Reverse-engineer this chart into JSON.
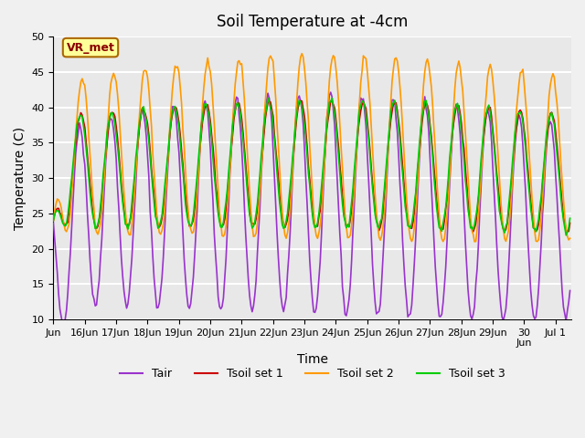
{
  "title": "Soil Temperature at -4cm",
  "xlabel": "Time",
  "ylabel": "Temperature (C)",
  "ylim": [
    10,
    50
  ],
  "colors": {
    "Tair": "#9933cc",
    "Tsoil1": "#cc0000",
    "Tsoil2": "#ff9900",
    "Tsoil3": "#00cc00"
  },
  "legend_labels": [
    "Tair",
    "Tsoil set 1",
    "Tsoil set 2",
    "Tsoil set 3"
  ],
  "annotation_text": "VR_met",
  "annotation_box_color": "#ffff99",
  "annotation_border_color": "#aa6600",
  "background_color": "#e8e8e8",
  "grid_color": "white",
  "title_fontsize": 12,
  "axis_fontsize": 10,
  "tick_fontsize": 8
}
